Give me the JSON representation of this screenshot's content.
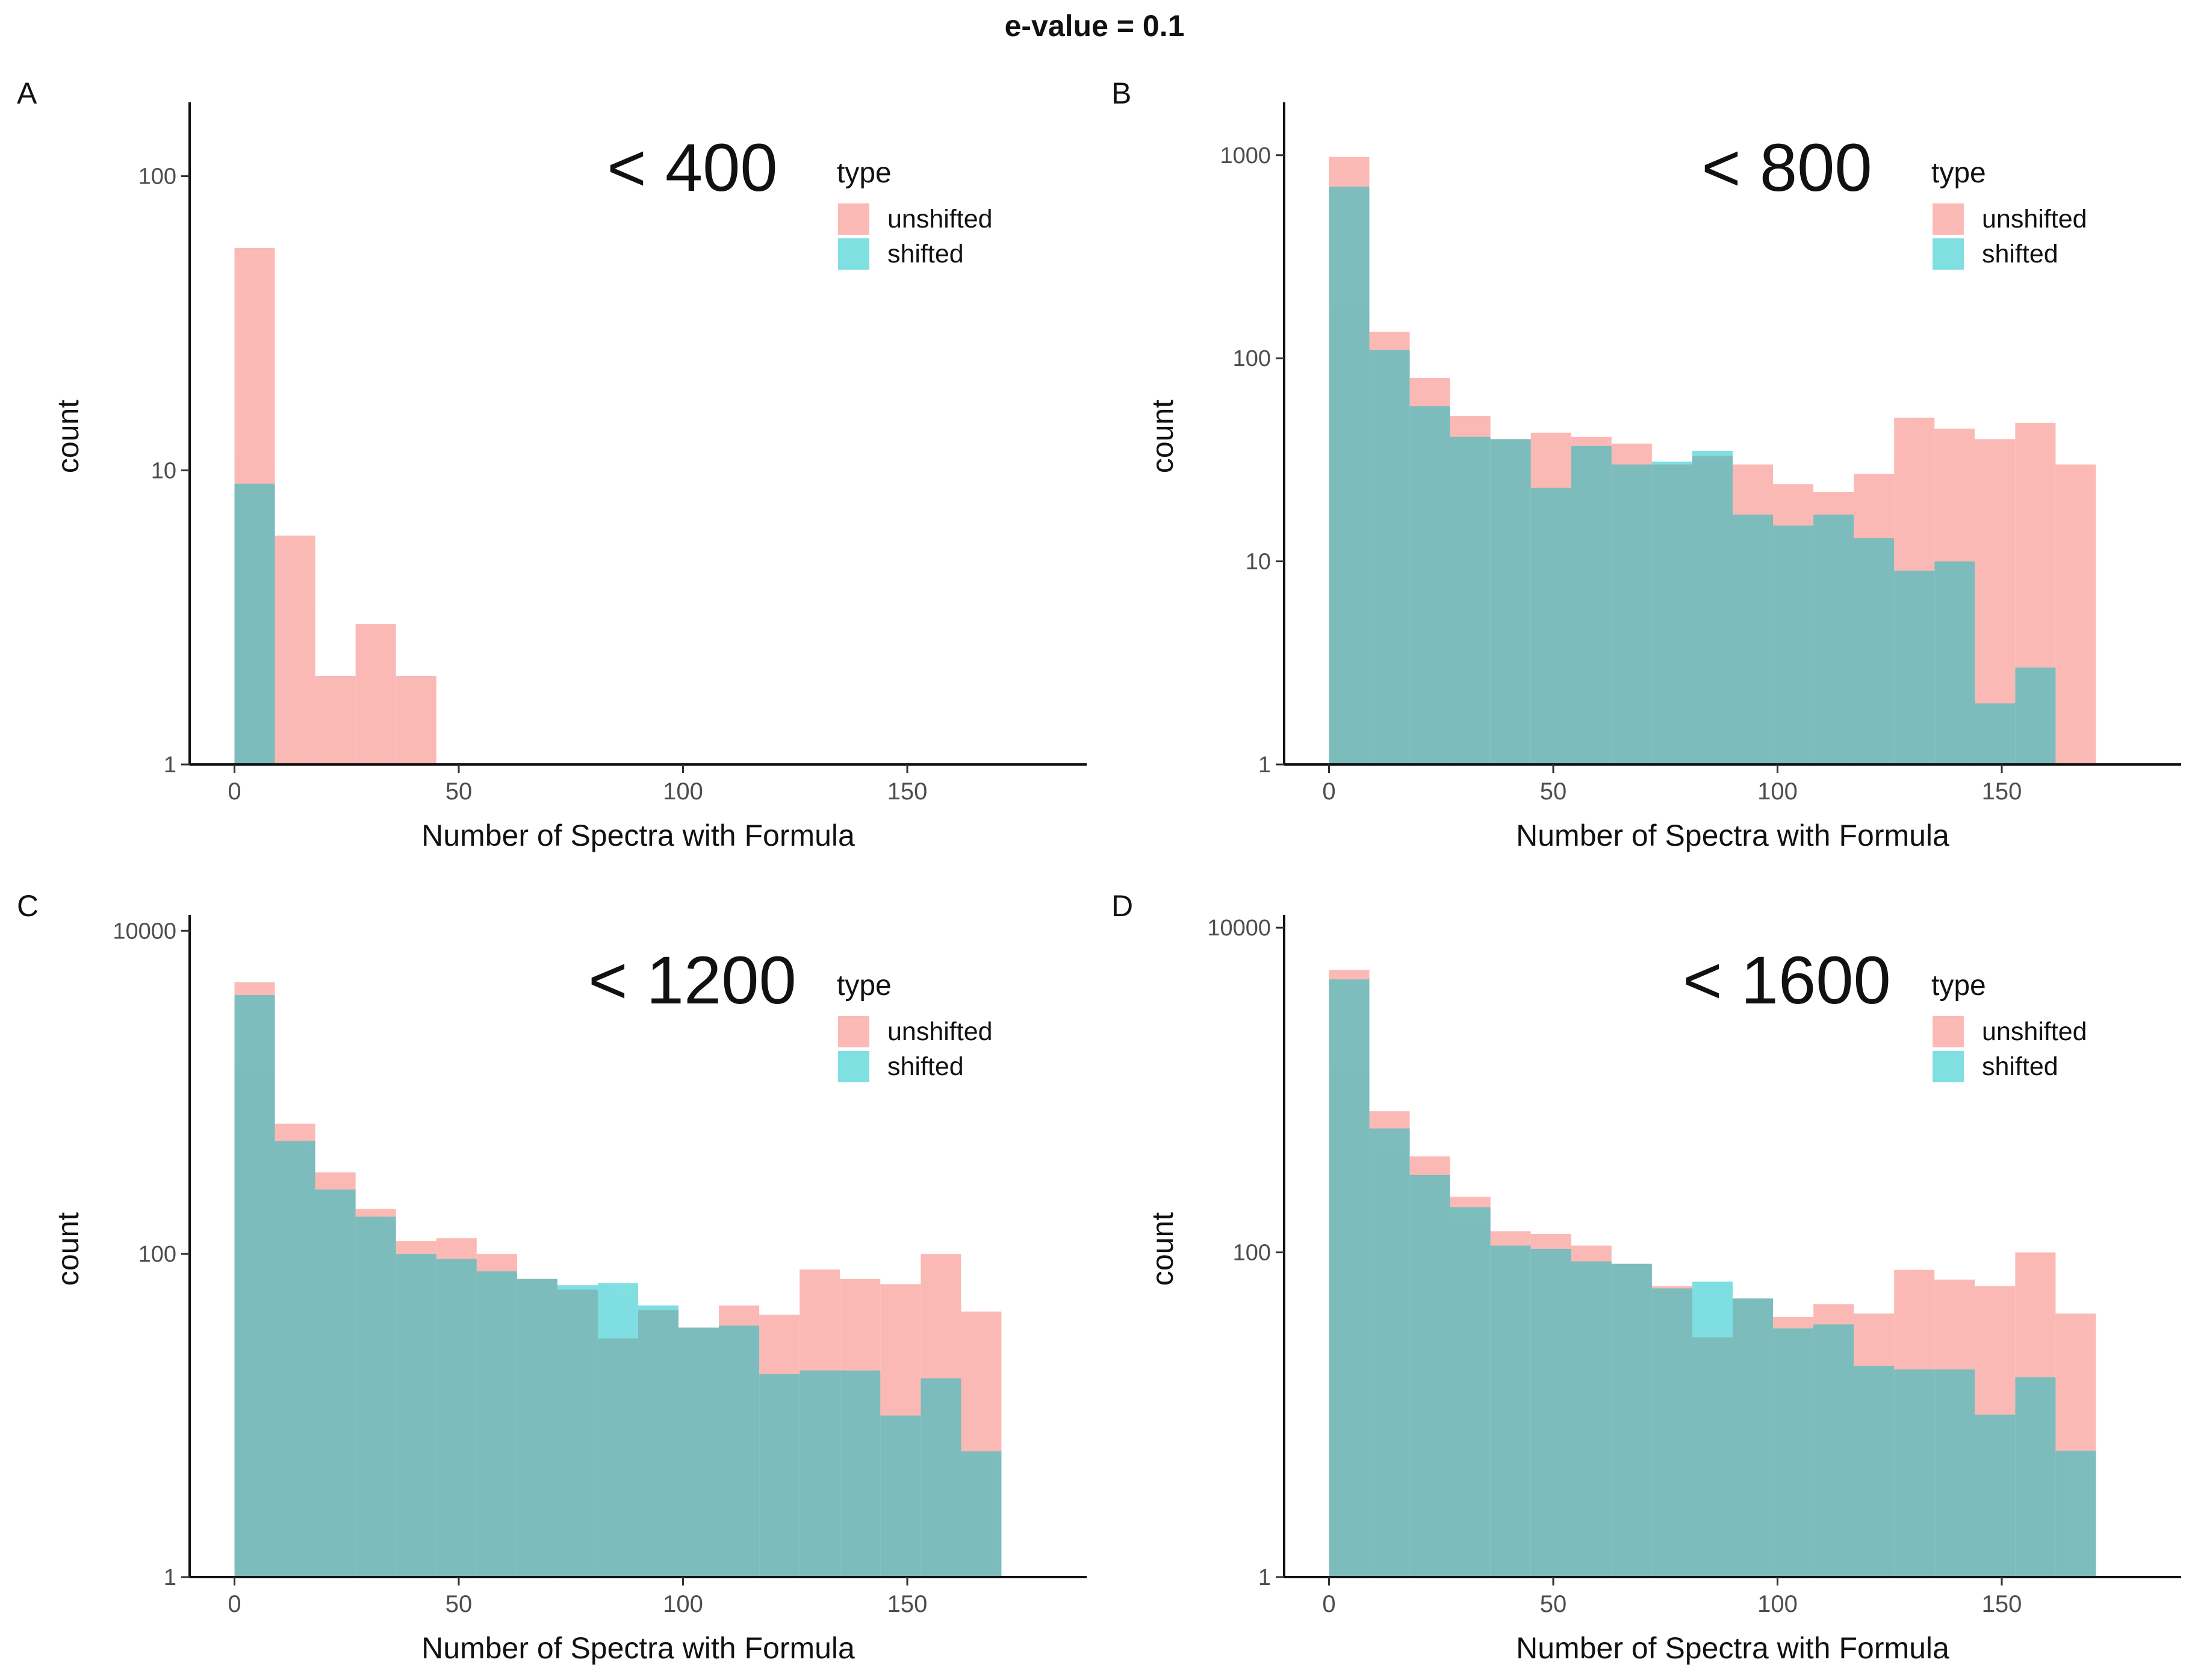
{
  "figure_title": "e-value = 0.1",
  "chart_data": [
    {
      "type": "histogram",
      "panel_label": "A",
      "annotation": "< 400",
      "xlabel": "Number of Spectra with Formula",
      "ylabel": "count",
      "y_scale": "log10",
      "xlim": [
        -10,
        190
      ],
      "ylim": [
        1,
        170
      ],
      "x_ticks": [
        "0",
        "50",
        "100",
        "150"
      ],
      "x_tick_values": [
        0,
        50,
        100,
        150
      ],
      "y_ticks": [
        "1",
        "10",
        "100"
      ],
      "y_tick_values": [
        1,
        10,
        100
      ],
      "legend": {
        "title": "type",
        "position": "top-right",
        "entries": [
          {
            "name": "unshifted",
            "color": "#F8766D"
          },
          {
            "name": "shifted",
            "color": "#00BFC4"
          }
        ]
      },
      "bin_width": 9,
      "bin_starts": [
        0,
        9,
        18,
        27,
        36
      ],
      "series": [
        {
          "name": "unshifted",
          "color": "#F8766D",
          "values": [
            57,
            6,
            2,
            3,
            2
          ]
        },
        {
          "name": "shifted",
          "color": "#00BFC4",
          "values": [
            9,
            0,
            0,
            0,
            0
          ]
        }
      ]
    },
    {
      "type": "histogram",
      "panel_label": "B",
      "annotation": "< 800",
      "xlabel": "Number of Spectra with Formula",
      "ylabel": "count",
      "y_scale": "log10",
      "xlim": [
        -10,
        190
      ],
      "ylim": [
        1,
        1700
      ],
      "x_ticks": [
        "0",
        "50",
        "100",
        "150"
      ],
      "x_tick_values": [
        0,
        50,
        100,
        150
      ],
      "y_ticks": [
        "1",
        "10",
        "100",
        "1000"
      ],
      "y_tick_values": [
        1,
        10,
        100,
        1000
      ],
      "legend": {
        "title": "type",
        "position": "top-right",
        "entries": [
          {
            "name": "unshifted",
            "color": "#F8766D"
          },
          {
            "name": "shifted",
            "color": "#00BFC4"
          }
        ]
      },
      "bin_width": 9,
      "bin_starts": [
        0,
        9,
        18,
        27,
        36,
        45,
        54,
        63,
        72,
        81,
        90,
        99,
        108,
        117,
        126,
        135,
        144,
        153,
        162
      ],
      "series": [
        {
          "name": "unshifted",
          "color": "#F8766D",
          "values": [
            980,
            135,
            80,
            52,
            40,
            43,
            41,
            38,
            30,
            33,
            30,
            24,
            22,
            27,
            51,
            45,
            40,
            48,
            30
          ]
        },
        {
          "name": "shifted",
          "color": "#00BFC4",
          "values": [
            700,
            110,
            58,
            41,
            40,
            23,
            37,
            30,
            31,
            35,
            17,
            15,
            17,
            13,
            9,
            10,
            2,
            3,
            0
          ]
        }
      ]
    },
    {
      "type": "histogram",
      "panel_label": "C",
      "annotation": "< 1200",
      "xlabel": "Number of Spectra with Formula",
      "ylabel": "count",
      "y_scale": "log10",
      "xlim": [
        -10,
        190
      ],
      "ylim": [
        1,
        11500
      ],
      "x_ticks": [
        "0",
        "50",
        "100",
        "150"
      ],
      "x_tick_values": [
        0,
        50,
        100,
        150
      ],
      "y_ticks": [
        "1",
        "100",
        "10000"
      ],
      "y_tick_values": [
        1,
        100,
        10000
      ],
      "legend": {
        "title": "type",
        "position": "top-right",
        "entries": [
          {
            "name": "unshifted",
            "color": "#F8766D"
          },
          {
            "name": "shifted",
            "color": "#00BFC4"
          }
        ]
      },
      "bin_width": 9,
      "bin_starts": [
        0,
        9,
        18,
        27,
        36,
        45,
        54,
        63,
        72,
        81,
        90,
        99,
        108,
        117,
        126,
        135,
        144,
        153,
        162
      ],
      "series": [
        {
          "name": "unshifted",
          "color": "#F8766D",
          "values": [
            4800,
            640,
            320,
            190,
            120,
            125,
            100,
            70,
            60,
            30,
            45,
            35,
            48,
            42,
            80,
            70,
            65,
            100,
            44
          ]
        },
        {
          "name": "shifted",
          "color": "#00BFC4",
          "values": [
            4000,
            500,
            250,
            170,
            100,
            93,
            78,
            70,
            64,
            66,
            48,
            35,
            36,
            18,
            19,
            19,
            10,
            17,
            6
          ]
        }
      ]
    },
    {
      "type": "histogram",
      "panel_label": "D",
      "annotation": "< 1600",
      "xlabel": "Number of Spectra with Formula",
      "ylabel": "count",
      "y_scale": "log10",
      "xlim": [
        -10,
        190
      ],
      "ylim": [
        1,
        11000
      ],
      "x_ticks": [
        "0",
        "50",
        "100",
        "150"
      ],
      "x_tick_values": [
        0,
        50,
        100,
        150
      ],
      "y_ticks": [
        "1",
        "100",
        "10000"
      ],
      "y_tick_values": [
        1,
        100,
        10000
      ],
      "legend": {
        "title": "type",
        "position": "top-right",
        "entries": [
          {
            "name": "unshifted",
            "color": "#F8766D"
          },
          {
            "name": "shifted",
            "color": "#00BFC4"
          }
        ]
      },
      "bin_width": 9,
      "bin_starts": [
        0,
        9,
        18,
        27,
        36,
        45,
        54,
        63,
        72,
        81,
        90,
        99,
        108,
        117,
        126,
        135,
        144,
        153,
        162
      ],
      "series": [
        {
          "name": "unshifted",
          "color": "#F8766D",
          "values": [
            5500,
            740,
            390,
            220,
            135,
            130,
            110,
            85,
            62,
            30,
            52,
            40,
            48,
            42,
            78,
            68,
            62,
            100,
            42
          ]
        },
        {
          "name": "shifted",
          "color": "#00BFC4",
          "values": [
            4800,
            580,
            300,
            190,
            110,
            105,
            88,
            85,
            60,
            66,
            52,
            34,
            36,
            20,
            19,
            19,
            10,
            17,
            6
          ]
        }
      ]
    }
  ]
}
